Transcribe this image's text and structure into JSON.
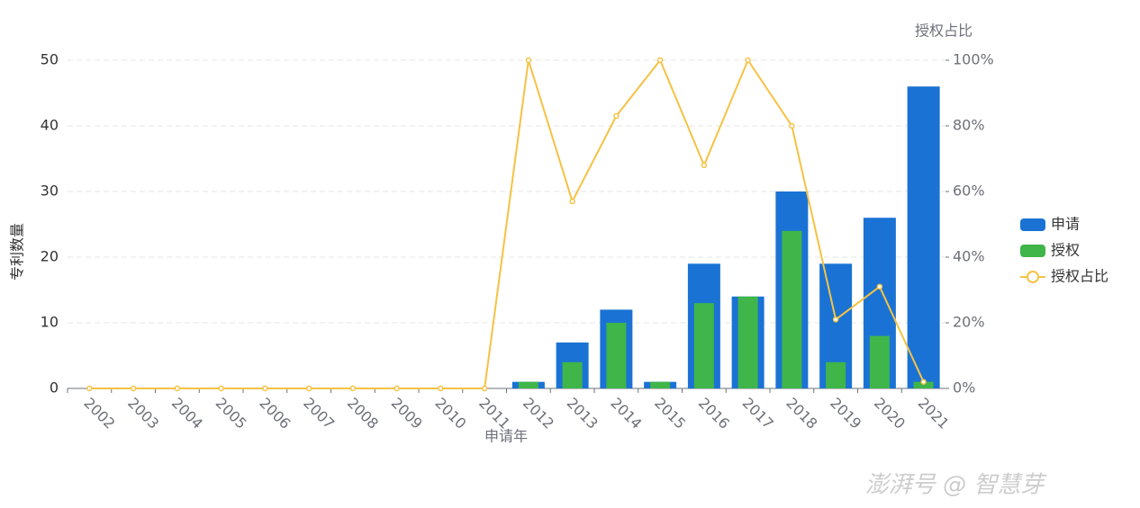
{
  "chart_data": {
    "type": "bar",
    "y_label": "专利数量",
    "y2_label": "授权占比",
    "x_label": "申请年",
    "categories": [
      "2002",
      "2003",
      "2004",
      "2005",
      "2006",
      "2007",
      "2008",
      "2009",
      "2010",
      "2011",
      "2012",
      "2013",
      "2014",
      "2015",
      "2016",
      "2017",
      "2018",
      "2019",
      "2020",
      "2021"
    ],
    "series": [
      {
        "name": "申请",
        "type": "bar",
        "color": "#1a73d4",
        "values": [
          0,
          0,
          0,
          0,
          0,
          0,
          0,
          0,
          0,
          0,
          1,
          7,
          12,
          1,
          19,
          14,
          30,
          19,
          26,
          46
        ]
      },
      {
        "name": "授权",
        "type": "bar",
        "color": "#3fb54a",
        "values": [
          0,
          0,
          0,
          0,
          0,
          0,
          0,
          0,
          0,
          0,
          1,
          4,
          10,
          1,
          13,
          14,
          24,
          4,
          8,
          1
        ]
      },
      {
        "name": "授权占比",
        "type": "line",
        "axis": "y2",
        "color": "#f5c244",
        "values": [
          0,
          0,
          0,
          0,
          0,
          0,
          0,
          0,
          0,
          0,
          100,
          57,
          83,
          100,
          68,
          100,
          80,
          21,
          31,
          2
        ]
      }
    ],
    "ylim": [
      0,
      50
    ],
    "yticks": [
      0,
      10,
      20,
      30,
      40,
      50
    ],
    "y2lim": [
      0,
      100
    ],
    "y2ticks": [
      {
        "value": 0,
        "label": "0%"
      },
      {
        "value": 20,
        "label": "20%"
      },
      {
        "value": 40,
        "label": "40%"
      },
      {
        "value": 60,
        "label": "60%"
      },
      {
        "value": 80,
        "label": "80%"
      },
      {
        "value": 100,
        "label": "100%"
      }
    ],
    "grid": true,
    "legend": "right",
    "watermark": "澎湃号 @ 智慧芽"
  }
}
